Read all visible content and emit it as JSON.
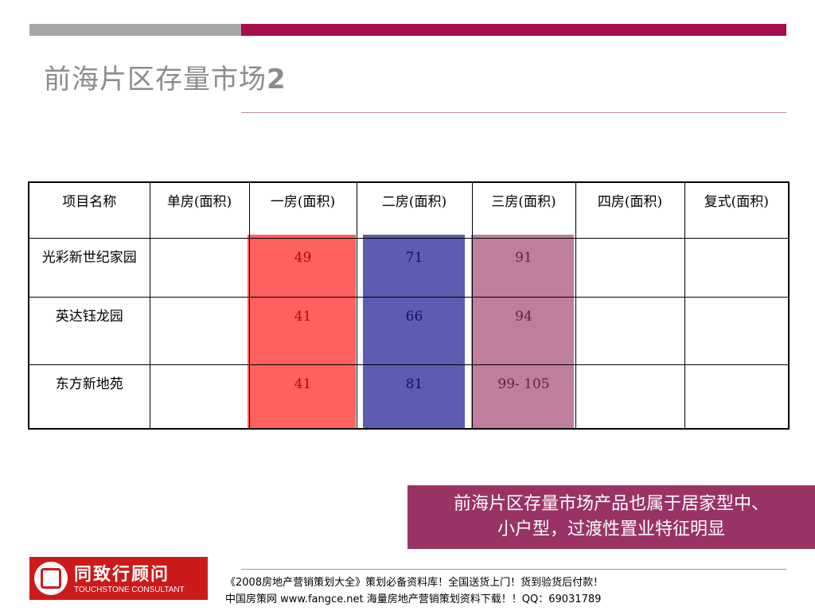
{
  "title": {
    "text": "前海片区存量市场",
    "number": "2"
  },
  "table": {
    "headers": [
      "项目名称",
      "单房(面积)",
      "一房(面积)",
      "二房(面积)",
      "三房(面积)",
      "四房(面积)",
      "复式(面积)"
    ],
    "rows": [
      {
        "name": "光彩新世纪家园",
        "single": "",
        "one": "49",
        "two": "71",
        "three": "91",
        "four": "",
        "duplex": ""
      },
      {
        "name": "英达钰龙园",
        "single": "",
        "one": "41",
        "two": "66",
        "three": "94",
        "four": "",
        "duplex": ""
      },
      {
        "name": "东方新地苑",
        "single": "",
        "one": "41",
        "two": "81",
        "three": "99- 105",
        "four": "",
        "duplex": ""
      }
    ]
  },
  "summary": {
    "line1": "前海片区存量市场产品也属于居家型中、",
    "line2": "小户型，过渡性置业特征明显"
  },
  "logo": {
    "cn": "同致行顾问",
    "en": "TOUCHSTONE CONSULTANT"
  },
  "footer": {
    "line1": "《2008房地产营销策划大全》策划必备资料库！全国送货上门！货到验货后付款！",
    "line2": "中国房策网 www.fangce.net  海量房地产营销策划资料下载！！QQ：69031789"
  },
  "colors": {
    "accent_red": "#a50d4f",
    "summary_bg": "#993366",
    "logo_red": "#cc1a1a"
  }
}
